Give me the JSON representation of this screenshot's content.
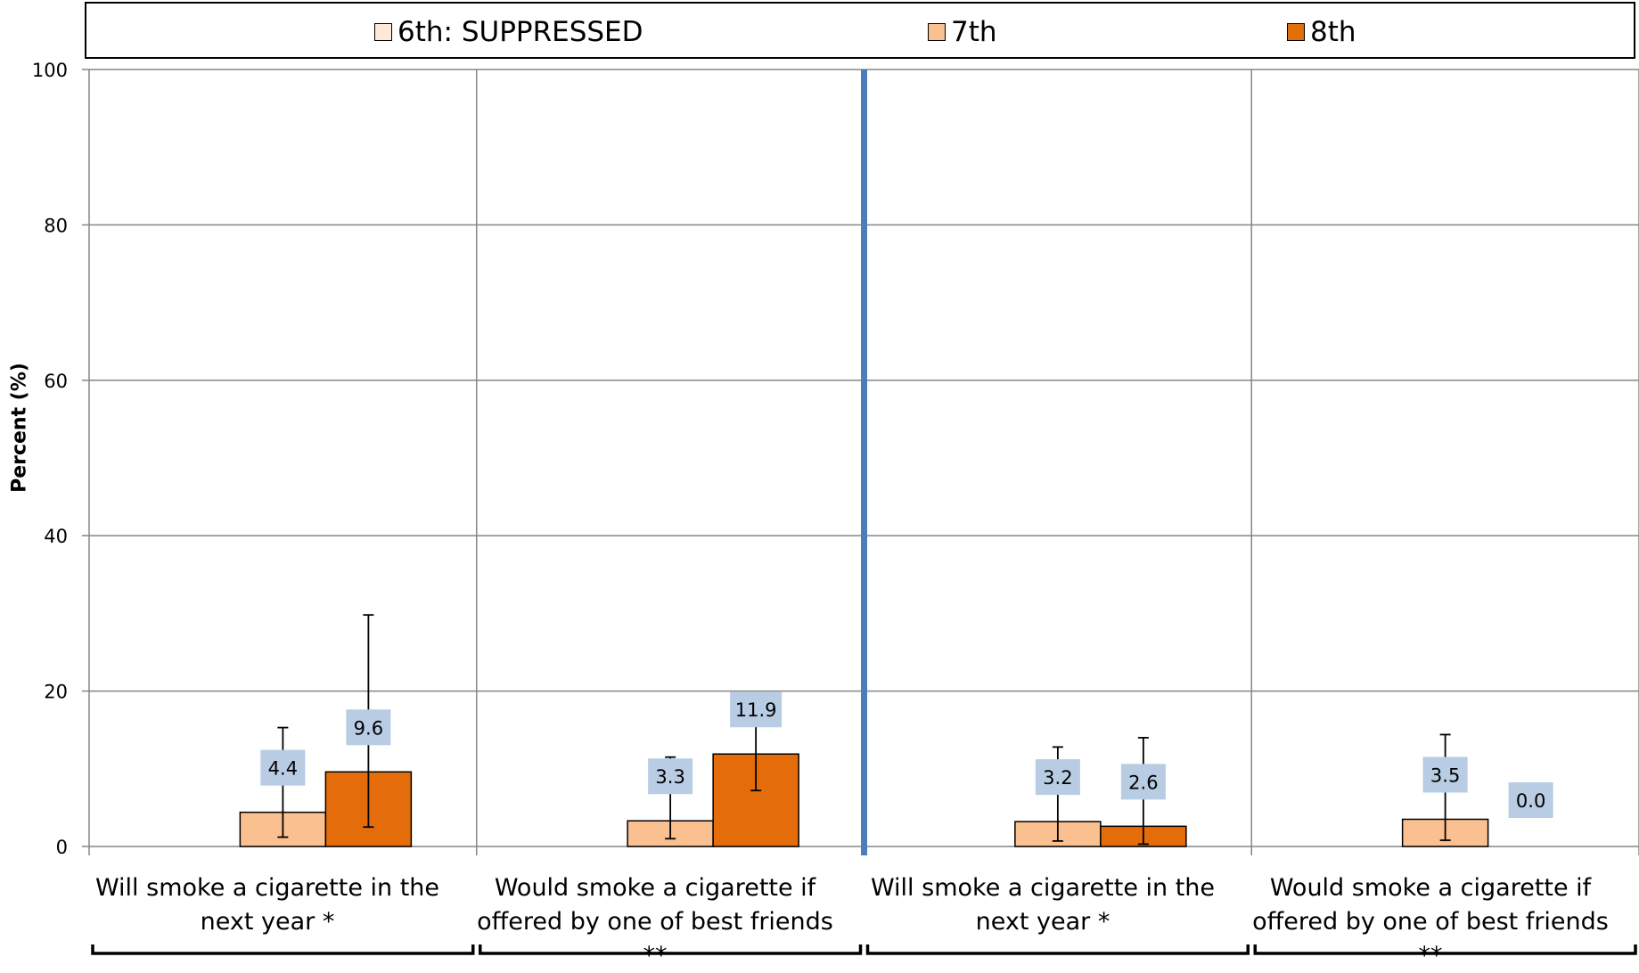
{
  "chart_data": {
    "type": "bar",
    "ylabel": "Percent (%)",
    "ylim": [
      0,
      100
    ],
    "yticks": [
      "0",
      "20",
      "40",
      "60",
      "80",
      "100"
    ],
    "grid": true,
    "legend_position": "top",
    "categories": [
      "Will smoke a cigarette in the next year *",
      "Would smoke a cigarette if offered by one of best friends **",
      "Will smoke a cigarette in the next year *",
      "Would smoke a cigarette if offered by one of best friends **"
    ],
    "series": [
      {
        "name": "6th: SUPPRESSED",
        "color": "#fde9d9",
        "values": [
          null,
          null,
          null,
          null
        ],
        "labels": [
          null,
          null,
          null,
          null
        ]
      },
      {
        "name": "7th",
        "color": "#fac090",
        "values": [
          4.4,
          3.3,
          3.2,
          3.5
        ],
        "labels": [
          "4.4",
          "3.3",
          "3.2",
          "3.5"
        ],
        "err_low": [
          1.2,
          1.0,
          0.7,
          0.8
        ],
        "err_high": [
          15.3,
          11.5,
          12.8,
          14.4
        ]
      },
      {
        "name": "8th",
        "color": "#e46c0a",
        "values": [
          9.6,
          11.9,
          2.6,
          0.0
        ],
        "labels": [
          "9.6",
          "11.9",
          "2.6",
          "0.0"
        ],
        "err_low": [
          2.5,
          7.2,
          0.3,
          0.0
        ],
        "err_high": [
          29.8,
          19.0,
          14.0,
          0.0
        ]
      }
    ]
  }
}
